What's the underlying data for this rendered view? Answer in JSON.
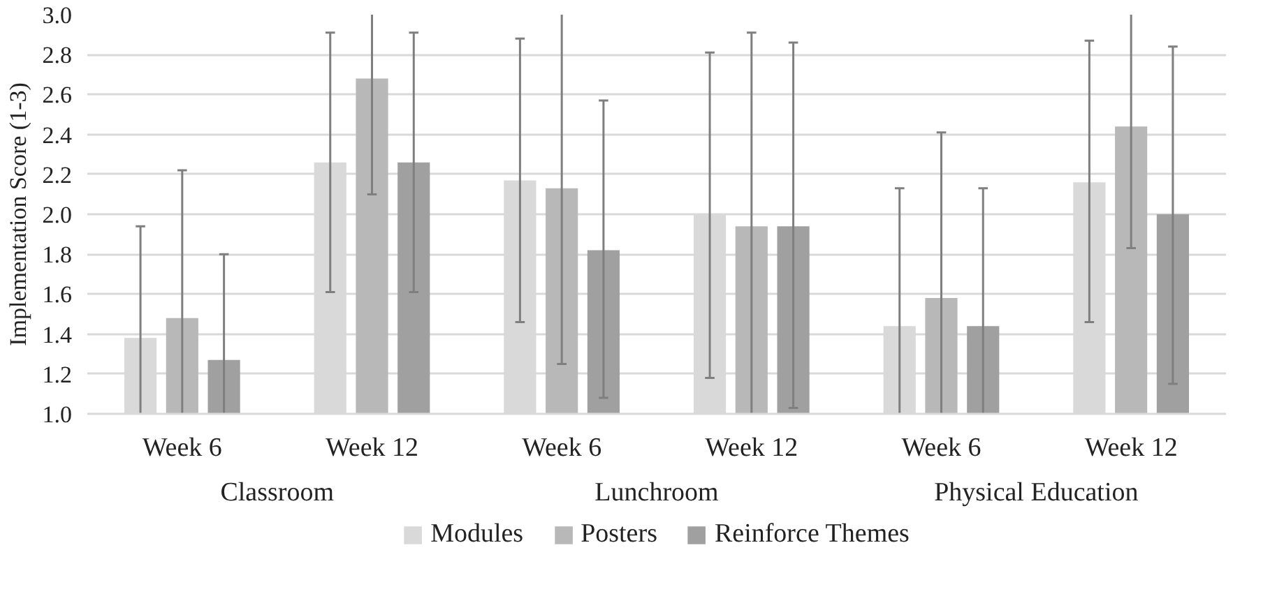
{
  "chart_data": {
    "type": "bar",
    "ylabel": "Implementation Score (1-3)",
    "categories": [
      "Week 6",
      "Week 12",
      "Week 6",
      "Week 12",
      "Week 6",
      "Week 12"
    ],
    "annotations": [
      "Classroom",
      "Lunchroom",
      "Physical Education"
    ],
    "series": [
      {
        "name": "Modules",
        "color": "#d9d9d9",
        "values": [
          1.38,
          2.26,
          2.17,
          2.0,
          1.44,
          2.16
        ],
        "errors": [
          [
            1.0,
            1.94
          ],
          [
            1.61,
            2.91
          ],
          [
            1.46,
            2.88
          ],
          [
            1.18,
            2.81
          ],
          [
            1.0,
            2.13
          ],
          [
            1.46,
            2.87
          ]
        ]
      },
      {
        "name": "Posters",
        "color": "#b8b8b8",
        "values": [
          1.48,
          2.68,
          2.13,
          1.94,
          1.58,
          2.44
        ],
        "errors": [
          [
            1.0,
            2.22
          ],
          [
            2.1,
            3.0
          ],
          [
            1.25,
            3.0
          ],
          [
            1.0,
            2.91
          ],
          [
            1.0,
            2.41
          ],
          [
            1.83,
            3.0
          ]
        ]
      },
      {
        "name": "Reinforce Themes",
        "color": "#a0a0a0",
        "values": [
          1.27,
          2.26,
          1.82,
          1.94,
          1.44,
          2.0
        ],
        "errors": [
          [
            1.0,
            1.8
          ],
          [
            1.61,
            2.91
          ],
          [
            1.08,
            2.57
          ],
          [
            1.03,
            2.86
          ],
          [
            1.0,
            2.13
          ],
          [
            1.15,
            2.84
          ]
        ]
      }
    ],
    "ylim": [
      1.0,
      3.0
    ],
    "yticks": [
      {
        "value": 1.0,
        "label": "1.0"
      },
      {
        "value": 1.2,
        "label": "1.2"
      },
      {
        "value": 1.4,
        "label": "1.4"
      },
      {
        "value": 1.6,
        "label": "1.6"
      },
      {
        "value": 1.8,
        "label": "1.8"
      },
      {
        "value": 2.0,
        "label": "2.0"
      },
      {
        "value": 2.2,
        "label": "2.2"
      },
      {
        "value": 2.4,
        "label": "2.4"
      },
      {
        "value": 2.6,
        "label": "2.6"
      },
      {
        "value": 2.8,
        "label": "2.8"
      },
      {
        "value": 3.0,
        "label": "3.0"
      }
    ],
    "grid": "y",
    "legend": "bottom"
  }
}
